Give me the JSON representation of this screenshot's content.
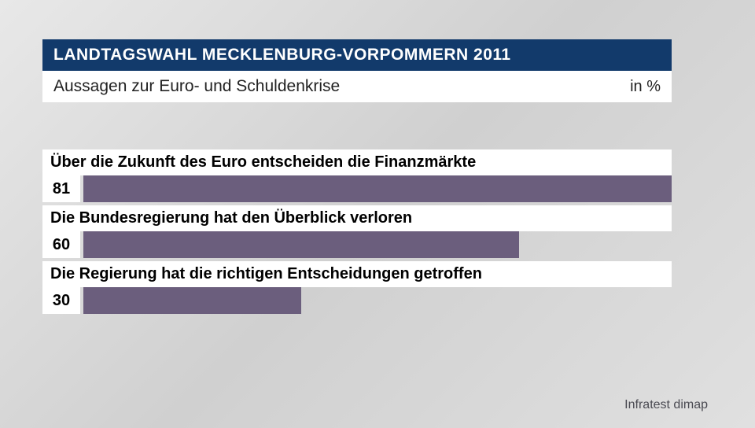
{
  "header": {
    "title": "LANDTAGSWAHL MECKLENBURG-VORPOMMERN 2011",
    "subtitle": "Aussagen zur Euro- und Schuldenkrise",
    "unit": "in %"
  },
  "chart": {
    "type": "bar",
    "orientation": "horizontal",
    "max_value": 81,
    "bar_color": "#6b5e7d",
    "label_bg_color": "#ffffff",
    "value_bg_color": "#ffffff",
    "text_color": "#000000",
    "label_fontsize": 20,
    "value_fontsize": 20,
    "items": [
      {
        "label": "Über die Zukunft des Euro entscheiden die Finanzmärkte",
        "value": 81
      },
      {
        "label": "Die Bundesregierung hat den Überblick verloren",
        "value": 60
      },
      {
        "label": "Die Regierung hat die richtigen Entscheidungen getroffen",
        "value": 30
      }
    ]
  },
  "source": "Infratest dimap",
  "colors": {
    "header_bg": "#123a6b",
    "header_text": "#ffffff",
    "page_bg_start": "#e8e8e8",
    "page_bg_end": "#d0d0d0"
  }
}
